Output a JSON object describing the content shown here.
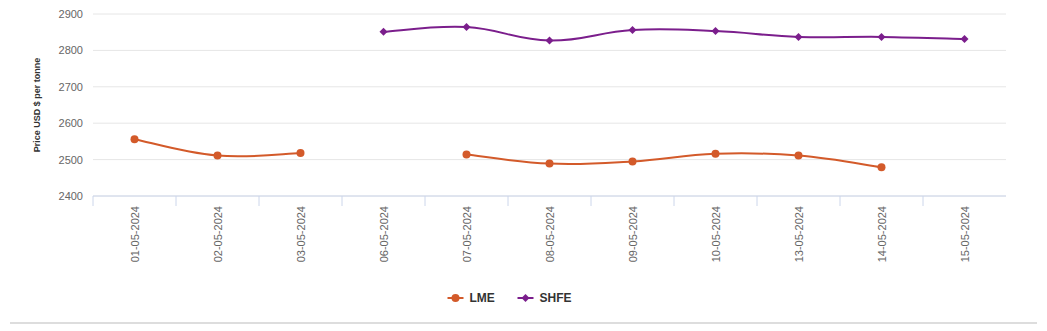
{
  "chart_data": {
    "type": "line",
    "y_label": "Price USD $ per tonne",
    "categories": [
      "01-05-2024",
      "02-05-2024",
      "03-05-2024",
      "06-05-2024",
      "07-05-2024",
      "08-05-2024",
      "09-05-2024",
      "10-05-2024",
      "13-05-2024",
      "14-05-2024",
      "15-05-2024"
    ],
    "series": [
      {
        "name": "LME",
        "color": "#d35a2a",
        "marker": "circle",
        "values": [
          2556,
          2511,
          2518,
          null,
          2514,
          2489,
          2495,
          2516,
          2511,
          2479,
          null
        ]
      },
      {
        "name": "SHFE",
        "color": "#7b1e8c",
        "marker": "diamond",
        "values": [
          null,
          null,
          null,
          2851,
          2864,
          2827,
          2856,
          2853,
          2837,
          2837,
          2831
        ]
      }
    ],
    "ylim": [
      2400,
      2900
    ],
    "yticks": [
      2400,
      2500,
      2600,
      2700,
      2800,
      2900
    ],
    "grid": true,
    "legend": "bottom"
  }
}
